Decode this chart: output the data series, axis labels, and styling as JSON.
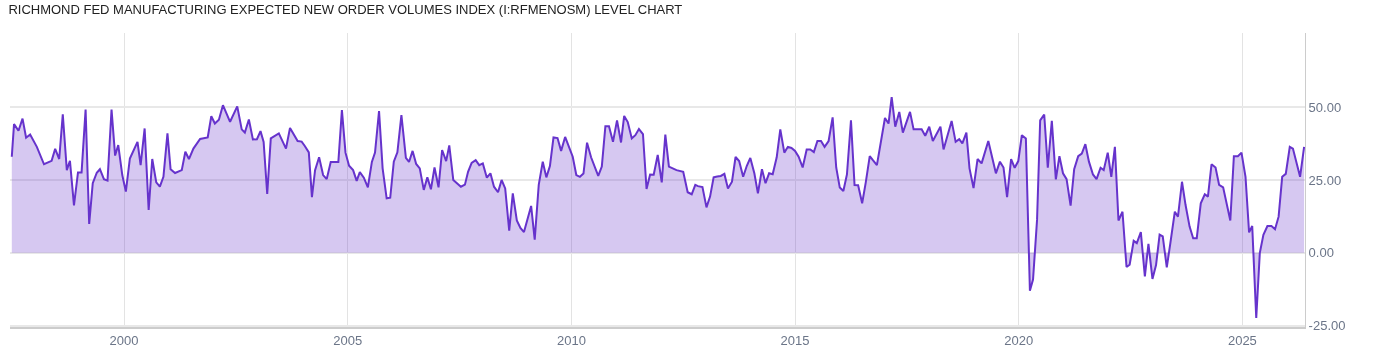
{
  "chart_data": {
    "type": "area",
    "title": "RICHMOND FED MANUFACTURING EXPECTED NEW ORDER VOLUMES INDEX (I:RFMENOSM) LEVEL CHART",
    "x": [
      1997.49,
      1997.54,
      1997.64,
      1997.73,
      1997.81,
      1997.9,
      1998.05,
      1998.21,
      1998.38,
      1998.46,
      1998.55,
      1998.63,
      1998.72,
      1998.79,
      1998.88,
      1998.97,
      1999.05,
      1999.14,
      1999.22,
      1999.3,
      1999.39,
      1999.46,
      1999.55,
      1999.63,
      1999.72,
      1999.8,
      1999.87,
      1999.96,
      2000.04,
      2000.13,
      2000.3,
      2000.37,
      2000.46,
      2000.55,
      2000.63,
      2000.72,
      2000.8,
      2000.88,
      2000.97,
      2001.04,
      2001.14,
      2001.29,
      2001.37,
      2001.45,
      2001.55,
      2001.7,
      2001.87,
      2001.95,
      2002.03,
      2002.12,
      2002.21,
      2002.37,
      2002.53,
      2002.63,
      2002.7,
      2002.79,
      2002.88,
      2002.97,
      2003.05,
      2003.12,
      2003.2,
      2003.28,
      2003.46,
      2003.62,
      2003.71,
      2003.88,
      2003.97,
      2004.04,
      2004.13,
      2004.2,
      2004.27,
      2004.36,
      2004.45,
      2004.53,
      2004.62,
      2004.79,
      2004.87,
      2004.95,
      2005.03,
      2005.12,
      2005.2,
      2005.27,
      2005.36,
      2005.45,
      2005.54,
      2005.61,
      2005.7,
      2005.78,
      2005.87,
      2005.95,
      2006.03,
      2006.11,
      2006.2,
      2006.3,
      2006.37,
      2006.45,
      2006.53,
      2006.61,
      2006.7,
      2006.78,
      2006.86,
      2006.94,
      2007.03,
      2007.11,
      2007.2,
      2007.27,
      2007.36,
      2007.53,
      2007.62,
      2007.69,
      2007.77,
      2007.86,
      2007.94,
      2008.02,
      2008.11,
      2008.19,
      2008.27,
      2008.36,
      2008.44,
      2008.52,
      2008.61,
      2008.69,
      2008.78,
      2008.86,
      2008.94,
      2009.1,
      2009.18,
      2009.27,
      2009.36,
      2009.44,
      2009.52,
      2009.6,
      2009.69,
      2009.77,
      2009.86,
      2010.03,
      2010.11,
      2010.19,
      2010.27,
      2010.35,
      2010.44,
      2010.6,
      2010.68,
      2010.76,
      2010.84,
      2010.93,
      2011.02,
      2011.11,
      2011.18,
      2011.26,
      2011.35,
      2011.43,
      2011.51,
      2011.6,
      2011.68,
      2011.76,
      2011.84,
      2011.93,
      2012.02,
      2012.1,
      2012.18,
      2012.35,
      2012.5,
      2012.6,
      2012.69,
      2012.77,
      2012.83,
      2012.93,
      2013.02,
      2013.1,
      2013.18,
      2013.26,
      2013.34,
      2013.42,
      2013.5,
      2013.59,
      2013.67,
      2013.75,
      2013.84,
      2013.92,
      2014.0,
      2014.09,
      2014.17,
      2014.26,
      2014.34,
      2014.42,
      2014.5,
      2014.59,
      2014.67,
      2014.76,
      2014.84,
      2014.92,
      2015.0,
      2015.08,
      2015.17,
      2015.26,
      2015.34,
      2015.42,
      2015.5,
      2015.58,
      2015.66,
      2015.75,
      2015.84,
      2015.92,
      2016.0,
      2016.08,
      2016.16,
      2016.25,
      2016.33,
      2016.41,
      2016.5,
      2016.58,
      2016.67,
      2016.74,
      2016.83,
      2017.01,
      2017.09,
      2017.16,
      2017.24,
      2017.33,
      2017.41,
      2017.57,
      2017.65,
      2017.83,
      2017.91,
      2018.0,
      2018.08,
      2018.25,
      2018.32,
      2018.5,
      2018.59,
      2018.67,
      2018.74,
      2018.83,
      2018.9,
      2018.99,
      2019.08,
      2019.17,
      2019.32,
      2019.49,
      2019.58,
      2019.66,
      2019.74,
      2019.83,
      2019.91,
      2019.99,
      2020.07,
      2020.16,
      2020.25,
      2020.32,
      2020.41,
      2020.48,
      2020.57,
      2020.65,
      2020.74,
      2020.83,
      2020.91,
      2020.99,
      2021.07,
      2021.16,
      2021.24,
      2021.33,
      2021.41,
      2021.49,
      2021.57,
      2021.66,
      2021.74,
      2021.83,
      2021.9,
      2021.99,
      2022.07,
      2022.15,
      2022.23,
      2022.32,
      2022.41,
      2022.48,
      2022.57,
      2022.64,
      2022.73,
      2022.82,
      2022.9,
      2022.99,
      2023.07,
      2023.15,
      2023.22,
      2023.31,
      2023.39,
      2023.49,
      2023.56,
      2023.65,
      2023.73,
      2023.82,
      2023.9,
      2023.98,
      2024.07,
      2024.16,
      2024.23,
      2024.31,
      2024.4,
      2024.48,
      2024.57,
      2024.73,
      2024.81,
      2024.9,
      2024.98,
      2025.07,
      2025.15,
      2025.22,
      2025.31,
      2025.39,
      2025.47,
      2025.56,
      2025.65,
      2025.73,
      2025.81,
      2025.89,
      2025.97,
      2026.06,
      2026.13,
      2026.29,
      2026.38
    ],
    "series": [
      {
        "color": "#6633cc",
        "values": [
          33,
          44.2,
          41.9,
          46.1,
          39.5,
          40.6,
          36.4,
          30.4,
          31.6,
          35.7,
          32.2,
          47.6,
          28.4,
          31.6,
          16.3,
          27.6,
          27.6,
          49.2,
          9.9,
          23.9,
          27.5,
          28.7,
          25.3,
          24.8,
          49.2,
          33.4,
          37,
          26.7,
          21,
          32.4,
          38.1,
          30.1,
          42.7,
          14.7,
          32.2,
          24.2,
          22.7,
          26.1,
          41,
          28.7,
          27.4,
          28.4,
          34.7,
          32.2,
          35.8,
          39.1,
          39.6,
          46.9,
          44.4,
          45.7,
          50.7,
          45,
          50.3,
          42.4,
          41.3,
          45.8,
          38.9,
          39,
          41.8,
          38.1,
          20.2,
          39.3,
          41,
          35.8,
          42.9,
          38.4,
          38.2,
          36.7,
          34.5,
          19.1,
          28.4,
          32.8,
          26.7,
          25.3,
          31.2,
          31.2,
          49,
          34.4,
          29.9,
          28.4,
          24.7,
          27.7,
          25.8,
          22.5,
          31.2,
          34.4,
          48.7,
          29,
          18.7,
          18.9,
          31.3,
          34.5,
          47.3,
          32.6,
          31.2,
          35,
          30.5,
          29,
          21.6,
          25.9,
          21.8,
          29.3,
          22.5,
          35.3,
          31.5,
          36.9,
          25,
          22.7,
          23.4,
          27.8,
          30.9,
          31.8,
          30.1,
          30.7,
          25.8,
          27.3,
          22.7,
          20.8,
          25,
          22.1,
          7.6,
          20.4,
          11.1,
          8.5,
          7.1,
          16.1,
          4.5,
          23.3,
          31.3,
          25.9,
          29.8,
          39.6,
          39.4,
          35,
          39.8,
          33,
          26.7,
          26.1,
          27.2,
          37.8,
          32.8,
          26.4,
          29.6,
          43.5,
          43.5,
          38.1,
          45.5,
          37.9,
          47,
          44.9,
          39.3,
          40.4,
          42.5,
          40.8,
          21.9,
          26.9,
          26.8,
          33.6,
          24.2,
          40.6,
          29.6,
          28.4,
          27.8,
          20.8,
          20.1,
          23.3,
          22.9,
          22.6,
          15.6,
          19.3,
          25.9,
          26.2,
          26.4,
          27.1,
          22.1,
          24.4,
          32.9,
          31.5,
          26.1,
          29.8,
          32.6,
          27.3,
          20.4,
          28.7,
          23.9,
          27.3,
          27,
          32.8,
          42.4,
          34.4,
          36.4,
          36,
          35,
          33,
          29.3,
          35.5,
          35.5,
          34.6,
          38.4,
          38.4,
          36.4,
          38.4,
          46.5,
          29.3,
          22.4,
          21.2,
          26.9,
          45.5,
          23.3,
          23.2,
          17,
          24.1,
          33.2,
          31.8,
          30.1,
          46.3,
          44.4,
          53.5,
          43.3,
          48.4,
          41.3,
          48.4,
          42.4,
          42.4,
          40.2,
          43.3,
          38.4,
          43.3,
          35.5,
          45.3,
          38.1,
          39,
          37.6,
          41.3,
          29,
          22.2,
          32.2,
          30.7,
          38.4,
          27.3,
          31.3,
          29.3,
          19.1,
          32.2,
          29.2,
          31.5,
          40.4,
          39.3,
          -13,
          -9.2,
          11.3,
          45.5,
          47.5,
          29.2,
          45.3,
          25.2,
          33.2,
          27.3,
          25.3,
          16.2,
          28.7,
          33.2,
          34.1,
          37.3,
          31.3,
          26.9,
          25.3,
          29.2,
          28.4,
          34.4,
          26.1,
          36.4,
          11.1,
          14.1,
          -4.9,
          -4.1,
          4.1,
          3.3,
          7.1,
          -8.1,
          3.1,
          -9,
          -4.2,
          6.2,
          5.6,
          -5,
          3.3,
          14.1,
          12.4,
          24.4,
          16.4,
          9,
          5,
          5,
          17,
          20.1,
          19.3,
          30.4,
          29.3,
          23.3,
          22.5,
          11.1,
          33.2,
          33.2,
          34.4,
          26.1,
          7,
          9.2,
          -22.4,
          0,
          6.2,
          9.2,
          9.2,
          8.1,
          12.4,
          26.1,
          27.1,
          36.4,
          35.8,
          26.1,
          36.4
        ]
      }
    ],
    "xlim": [
      1997.45,
      2026.4
    ],
    "xticks": [
      2000,
      2005,
      2010,
      2015,
      2020,
      2025
    ],
    "ylim": [
      -25.5,
      75.5
    ],
    "yticks": [
      {
        "value": -25,
        "label": "-25.00"
      },
      {
        "value": 0,
        "label": "0.00"
      },
      {
        "value": 25,
        "label": "25.00"
      },
      {
        "value": 50,
        "label": "50.00"
      }
    ],
    "grid": true
  }
}
